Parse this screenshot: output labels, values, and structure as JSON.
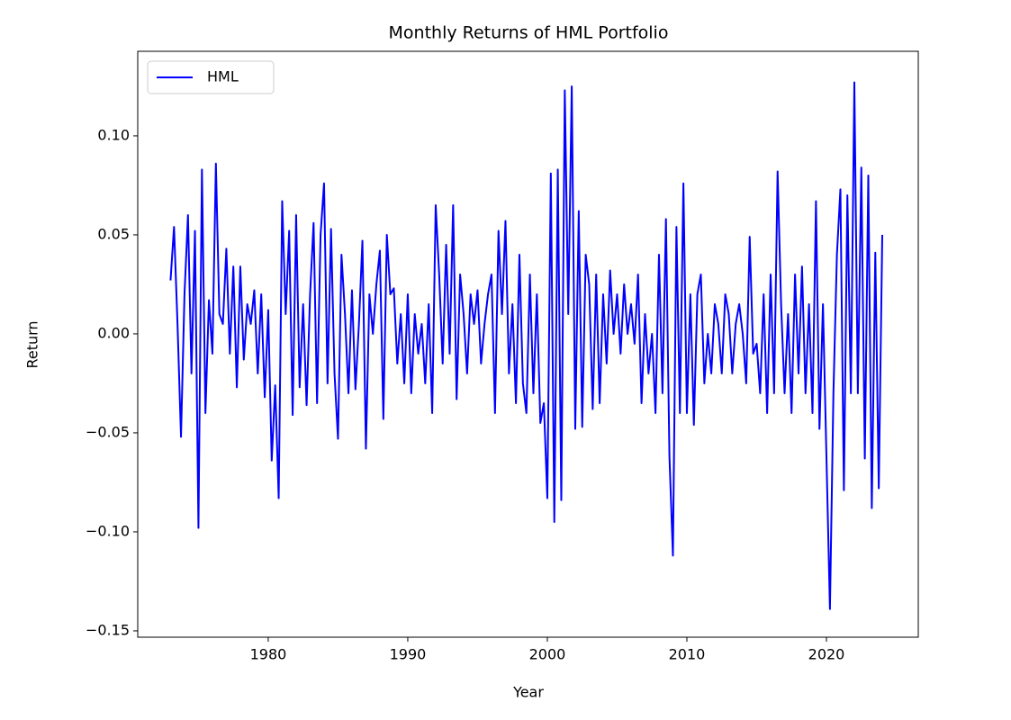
{
  "chart_data": {
    "type": "line",
    "title": "Monthly Returns of HML Portfolio",
    "xlabel": "Year",
    "ylabel": "Return",
    "x": [
      1973,
      1973.25,
      1973.5,
      1973.75,
      1974,
      1974.25,
      1974.5,
      1974.75,
      1975,
      1975.25,
      1975.5,
      1975.75,
      1976,
      1976.25,
      1976.5,
      1976.75,
      1977,
      1977.25,
      1977.5,
      1977.75,
      1978,
      1978.25,
      1978.5,
      1978.75,
      1979,
      1979.25,
      1979.5,
      1979.75,
      1980,
      1980.25,
      1980.5,
      1980.75,
      1981,
      1981.25,
      1981.5,
      1981.75,
      1982,
      1982.25,
      1982.5,
      1982.75,
      1983,
      1983.25,
      1983.5,
      1983.75,
      1984,
      1984.25,
      1984.5,
      1984.75,
      1985,
      1985.25,
      1985.5,
      1985.75,
      1986,
      1986.25,
      1986.5,
      1986.75,
      1987,
      1987.25,
      1987.5,
      1987.75,
      1988,
      1988.25,
      1988.5,
      1988.75,
      1989,
      1989.25,
      1989.5,
      1989.75,
      1990,
      1990.25,
      1990.5,
      1990.75,
      1991,
      1991.25,
      1991.5,
      1991.75,
      1992,
      1992.25,
      1992.5,
      1992.75,
      1993,
      1993.25,
      1993.5,
      1993.75,
      1994,
      1994.25,
      1994.5,
      1994.75,
      1995,
      1995.25,
      1995.5,
      1995.75,
      1996,
      1996.25,
      1996.5,
      1996.75,
      1997,
      1997.25,
      1997.5,
      1997.75,
      1998,
      1998.25,
      1998.5,
      1998.75,
      1999,
      1999.25,
      1999.5,
      1999.75,
      2000,
      2000.25,
      2000.5,
      2000.75,
      2001,
      2001.25,
      2001.5,
      2001.75,
      2002,
      2002.25,
      2002.5,
      2002.75,
      2003,
      2003.25,
      2003.5,
      2003.75,
      2004,
      2004.25,
      2004.5,
      2004.75,
      2005,
      2005.25,
      2005.5,
      2005.75,
      2006,
      2006.25,
      2006.5,
      2006.75,
      2007,
      2007.25,
      2007.5,
      2007.75,
      2008,
      2008.25,
      2008.5,
      2008.75,
      2009,
      2009.25,
      2009.5,
      2009.75,
      2010,
      2010.25,
      2010.5,
      2010.75,
      2011,
      2011.25,
      2011.5,
      2011.75,
      2012,
      2012.25,
      2012.5,
      2012.75,
      2013,
      2013.25,
      2013.5,
      2013.75,
      2014,
      2014.25,
      2014.5,
      2014.75,
      2015,
      2015.25,
      2015.5,
      2015.75,
      2016,
      2016.25,
      2016.5,
      2016.75,
      2017,
      2017.25,
      2017.5,
      2017.75,
      2018,
      2018.25,
      2018.5,
      2018.75,
      2019,
      2019.25,
      2019.5,
      2019.75,
      2020,
      2020.25,
      2020.5,
      2020.75,
      2021,
      2021.25,
      2021.5,
      2021.75,
      2022,
      2022.25,
      2022.5,
      2022.75,
      2023,
      2023.25,
      2023.5,
      2023.75,
      2024
    ],
    "series": [
      {
        "name": "HML",
        "color": "#0000ff",
        "values": [
          0.027,
          0.054,
          0.005,
          -0.052,
          0.02,
          0.06,
          -0.02,
          0.052,
          -0.098,
          0.083,
          -0.04,
          0.017,
          -0.01,
          0.086,
          0.01,
          0.005,
          0.043,
          -0.01,
          0.034,
          -0.027,
          0.034,
          -0.013,
          0.015,
          0.005,
          0.022,
          -0.02,
          0.02,
          -0.032,
          0.012,
          -0.064,
          -0.026,
          -0.083,
          0.067,
          0.01,
          0.052,
          -0.041,
          0.06,
          -0.027,
          0.015,
          -0.036,
          0.02,
          0.056,
          -0.035,
          0.05,
          0.076,
          -0.025,
          0.053,
          -0.02,
          -0.053,
          0.04,
          0.01,
          -0.03,
          0.022,
          -0.028,
          0.005,
          0.047,
          -0.058,
          0.02,
          0.0,
          0.025,
          0.042,
          -0.043,
          0.05,
          0.02,
          0.023,
          -0.015,
          0.01,
          -0.025,
          0.02,
          -0.03,
          0.01,
          -0.01,
          0.005,
          -0.025,
          0.015,
          -0.04,
          0.065,
          0.03,
          -0.015,
          0.045,
          -0.01,
          0.065,
          -0.033,
          0.03,
          0.01,
          -0.02,
          0.02,
          0.005,
          0.022,
          -0.015,
          0.005,
          0.02,
          0.03,
          -0.04,
          0.052,
          0.01,
          0.057,
          -0.02,
          0.015,
          -0.035,
          0.04,
          -0.025,
          -0.04,
          0.03,
          -0.03,
          0.02,
          -0.045,
          -0.035,
          -0.083,
          0.081,
          -0.095,
          0.083,
          -0.084,
          0.123,
          0.01,
          0.125,
          -0.048,
          0.062,
          -0.047,
          0.04,
          0.025,
          -0.038,
          0.03,
          -0.035,
          0.02,
          -0.015,
          0.032,
          0.0,
          0.02,
          -0.01,
          0.025,
          0.0,
          0.015,
          -0.005,
          0.03,
          -0.035,
          0.01,
          -0.02,
          0.0,
          -0.04,
          0.04,
          -0.03,
          0.058,
          -0.062,
          -0.112,
          0.054,
          -0.04,
          0.076,
          -0.04,
          0.02,
          -0.046,
          0.02,
          0.03,
          -0.025,
          0.0,
          -0.02,
          0.015,
          0.005,
          -0.02,
          0.02,
          0.01,
          -0.02,
          0.005,
          0.015,
          0.0,
          -0.025,
          0.049,
          -0.01,
          -0.005,
          -0.03,
          0.02,
          -0.04,
          0.03,
          -0.03,
          0.082,
          0.015,
          -0.03,
          0.01,
          -0.04,
          0.03,
          -0.02,
          0.034,
          -0.03,
          0.015,
          -0.04,
          0.067,
          -0.048,
          0.015,
          -0.062,
          -0.139,
          -0.03,
          0.04,
          0.073,
          -0.079,
          0.07,
          -0.03,
          0.127,
          -0.03,
          0.084,
          -0.063,
          0.08,
          -0.088,
          0.041,
          -0.078,
          0.05
        ]
      }
    ],
    "xlim": [
      1970.65,
      2026.58
    ],
    "xticks": [
      1980,
      1990,
      2000,
      2010,
      2020
    ],
    "ylim": [
      -0.1532,
      0.1427
    ],
    "yticks": [
      {
        "value": -0.15,
        "label": "−0.15"
      },
      {
        "value": -0.1,
        "label": "−0.10"
      },
      {
        "value": -0.05,
        "label": "−0.05"
      },
      {
        "value": 0,
        "label": "0.00"
      },
      {
        "value": 0.05,
        "label": "0.05"
      },
      {
        "value": 0.1,
        "label": "0.10"
      }
    ],
    "grid": false,
    "legend": "upper left"
  }
}
